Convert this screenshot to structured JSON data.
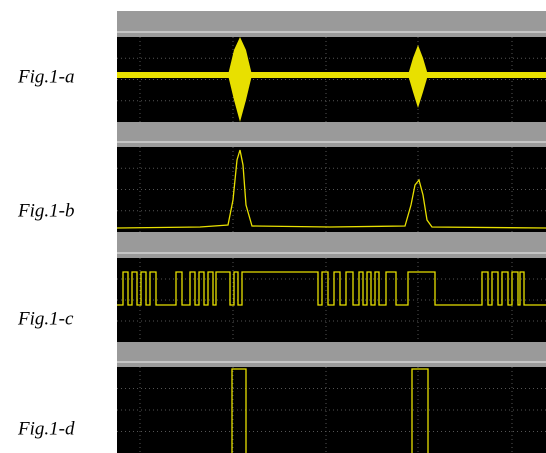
{
  "figure_labels": [
    "Fig.1-a",
    "Fig.1-b",
    "Fig.1-c",
    "Fig.1-d"
  ]
}
